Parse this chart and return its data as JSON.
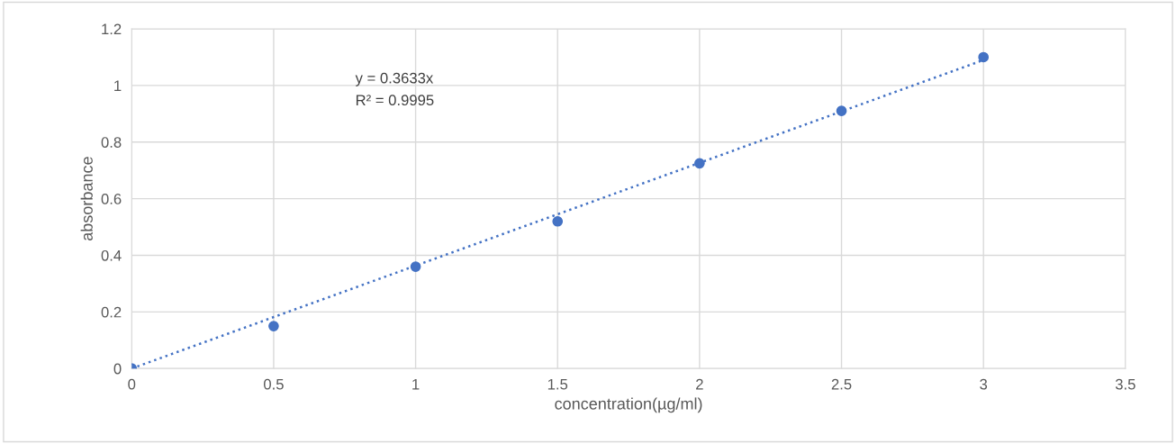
{
  "chart_data": {
    "type": "scatter",
    "xlabel": "concentration(µg/ml)",
    "ylabel": "absorbance",
    "x": [
      0,
      0.5,
      1,
      1.5,
      2,
      2.5,
      3
    ],
    "series": [
      {
        "color": "#4472c4",
        "values": [
          0,
          0.15,
          0.36,
          0.52,
          0.725,
          0.91,
          1.1
        ],
        "marker": "circle"
      },
      {
        "type": "line",
        "color": "#4472c4",
        "x": [
          0,
          3
        ],
        "values": [
          0,
          1.09
        ],
        "line_style": "dotted",
        "marker": "none"
      }
    ],
    "annotations": [
      "y = 0.3633x",
      "R² = 0.9995"
    ],
    "xlim": [
      0,
      3.5
    ],
    "xticks": [
      0,
      0.5,
      1,
      1.5,
      2,
      2.5,
      3,
      3.5
    ],
    "ylim": [
      0,
      1.2
    ],
    "yticks": [
      0,
      0.2,
      0.4,
      0.6,
      0.8,
      1,
      1.2
    ],
    "grid": true
  }
}
